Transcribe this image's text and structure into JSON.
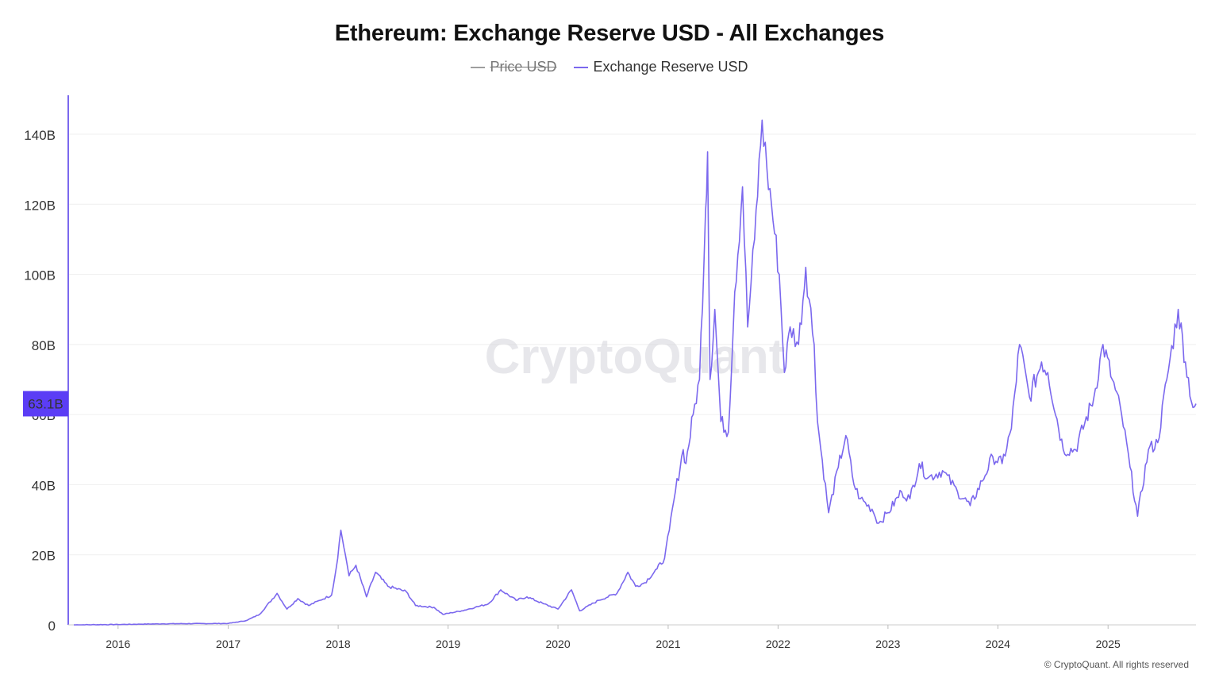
{
  "chart_data": {
    "type": "line",
    "title": "Ethereum: Exchange Reserve USD - All Exchanges",
    "legend": [
      {
        "name": "Price USD",
        "color": "#9e9e9e",
        "hidden": true
      },
      {
        "name": "Exchange Reserve USD",
        "color": "#7b68ee",
        "hidden": false
      }
    ],
    "y_axis": {
      "ticks": [
        0,
        20,
        40,
        60,
        80,
        100,
        120,
        140
      ],
      "tick_labels": [
        "0",
        "20B",
        "40B",
        "60B",
        "80B",
        "100B",
        "120B",
        "140B"
      ],
      "range": [
        0,
        150
      ],
      "unit": "B USD",
      "current_value_label": "63.1B",
      "current_value": 63.1
    },
    "x_axis": {
      "ticks": [
        "2016",
        "2017",
        "2018",
        "2019",
        "2020",
        "2021",
        "2022",
        "2023",
        "2024",
        "2025"
      ],
      "range": [
        "2015-08-07",
        "2025-10-20"
      ]
    },
    "grid": "horizontal",
    "legend_position": "top-center",
    "series": [
      {
        "name": "Exchange Reserve USD",
        "color": "#7b68ee",
        "points": [
          [
            "2015-08-07",
            0.0
          ],
          [
            "2016-01-01",
            0.1
          ],
          [
            "2016-06-01",
            0.3
          ],
          [
            "2017-01-01",
            0.4
          ],
          [
            "2017-03-01",
            1.2
          ],
          [
            "2017-04-15",
            3.0
          ],
          [
            "2017-06-12",
            9.0
          ],
          [
            "2017-07-15",
            4.5
          ],
          [
            "2017-08-20",
            7.5
          ],
          [
            "2017-09-25",
            5.5
          ],
          [
            "2017-11-01",
            7.0
          ],
          [
            "2017-12-10",
            8.5
          ],
          [
            "2017-12-25",
            16.0
          ],
          [
            "2018-01-10",
            27.0
          ],
          [
            "2018-01-25",
            20.0
          ],
          [
            "2018-02-06",
            14.0
          ],
          [
            "2018-03-01",
            17.0
          ],
          [
            "2018-04-05",
            8.0
          ],
          [
            "2018-05-05",
            15.0
          ],
          [
            "2018-06-15",
            11.0
          ],
          [
            "2018-08-15",
            9.5
          ],
          [
            "2018-09-15",
            5.5
          ],
          [
            "2018-11-15",
            5.0
          ],
          [
            "2018-12-15",
            3.0
          ],
          [
            "2019-02-15",
            4.0
          ],
          [
            "2019-04-01",
            5.0
          ],
          [
            "2019-05-15",
            6.0
          ],
          [
            "2019-06-25",
            10.0
          ],
          [
            "2019-08-15",
            7.0
          ],
          [
            "2019-09-20",
            8.0
          ],
          [
            "2019-11-15",
            6.0
          ],
          [
            "2020-01-01",
            4.5
          ],
          [
            "2020-02-15",
            10.0
          ],
          [
            "2020-03-13",
            4.0
          ],
          [
            "2020-05-15",
            7.0
          ],
          [
            "2020-07-15",
            9.0
          ],
          [
            "2020-08-20",
            15.0
          ],
          [
            "2020-09-15",
            11.0
          ],
          [
            "2020-10-15",
            12.0
          ],
          [
            "2020-11-25",
            16.0
          ],
          [
            "2020-12-20",
            19.0
          ],
          [
            "2021-01-05",
            27.0
          ],
          [
            "2021-01-25",
            38.0
          ],
          [
            "2021-02-20",
            50.0
          ],
          [
            "2021-03-01",
            46.0
          ],
          [
            "2021-03-25",
            60.0
          ],
          [
            "2021-04-15",
            70.0
          ],
          [
            "2021-05-05",
            118.0
          ],
          [
            "2021-05-12",
            135.0
          ],
          [
            "2021-05-20",
            70.0
          ],
          [
            "2021-06-05",
            90.0
          ],
          [
            "2021-06-25",
            58.0
          ],
          [
            "2021-07-20",
            55.0
          ],
          [
            "2021-08-10",
            95.0
          ],
          [
            "2021-09-05",
            125.0
          ],
          [
            "2021-09-22",
            85.0
          ],
          [
            "2021-10-15",
            110.0
          ],
          [
            "2021-11-09",
            144.0
          ],
          [
            "2021-11-25",
            130.0
          ],
          [
            "2021-12-10",
            120.0
          ],
          [
            "2022-01-05",
            100.0
          ],
          [
            "2022-01-22",
            72.0
          ],
          [
            "2022-02-10",
            85.0
          ],
          [
            "2022-03-10",
            80.0
          ],
          [
            "2022-04-03",
            102.0
          ],
          [
            "2022-05-01",
            80.0
          ],
          [
            "2022-05-12",
            58.0
          ],
          [
            "2022-06-18",
            32.0
          ],
          [
            "2022-07-20",
            45.0
          ],
          [
            "2022-08-14",
            54.0
          ],
          [
            "2022-09-10",
            40.0
          ],
          [
            "2022-10-01",
            36.0
          ],
          [
            "2022-11-09",
            33.0
          ],
          [
            "2022-12-01",
            29.0
          ],
          [
            "2023-01-01",
            32.0
          ],
          [
            "2023-02-15",
            38.0
          ],
          [
            "2023-03-15",
            36.0
          ],
          [
            "2023-04-15",
            46.0
          ],
          [
            "2023-05-15",
            42.0
          ],
          [
            "2023-07-01",
            44.0
          ],
          [
            "2023-08-20",
            38.0
          ],
          [
            "2023-10-01",
            34.0
          ],
          [
            "2023-11-10",
            41.0
          ],
          [
            "2023-12-15",
            48.0
          ],
          [
            "2024-01-15",
            46.0
          ],
          [
            "2024-02-15",
            56.0
          ],
          [
            "2024-03-13",
            80.0
          ],
          [
            "2024-04-15",
            65.0
          ],
          [
            "2024-05-25",
            75.0
          ],
          [
            "2024-06-15",
            72.0
          ],
          [
            "2024-08-05",
            50.0
          ],
          [
            "2024-09-15",
            50.0
          ],
          [
            "2024-11-15",
            65.0
          ],
          [
            "2024-12-15",
            80.0
          ],
          [
            "2025-01-15",
            70.0
          ],
          [
            "2025-02-15",
            60.0
          ],
          [
            "2025-03-15",
            45.0
          ],
          [
            "2025-04-09",
            31.0
          ],
          [
            "2025-05-15",
            50.0
          ],
          [
            "2025-06-15",
            52.0
          ],
          [
            "2025-07-15",
            70.0
          ],
          [
            "2025-08-22",
            90.0
          ],
          [
            "2025-09-15",
            75.0
          ],
          [
            "2025-10-10",
            62.0
          ],
          [
            "2025-10-20",
            63.1
          ]
        ]
      }
    ]
  },
  "watermark": "CryptoQuant",
  "footer": "© CryptoQuant. All rights reserved"
}
